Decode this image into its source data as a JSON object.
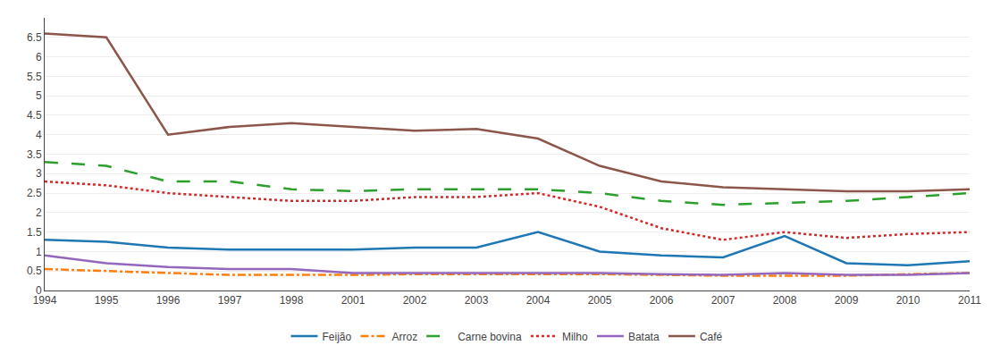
{
  "chart_data": {
    "type": "line",
    "categories": [
      "1994",
      "1995",
      "1996",
      "1997",
      "1998",
      "2001",
      "2002",
      "2003",
      "2004",
      "2005",
      "2006",
      "2007",
      "2008",
      "2009",
      "2010",
      "2011"
    ],
    "series": [
      {
        "name": "Feijão",
        "line_style": "solid",
        "values": [
          1.3,
          1.25,
          1.1,
          1.05,
          1.05,
          1.05,
          1.1,
          1.1,
          1.5,
          1.0,
          0.9,
          0.85,
          1.4,
          0.7,
          0.65,
          0.75
        ]
      },
      {
        "name": "Arroz",
        "line_style": "dashdot",
        "values": [
          0.55,
          0.5,
          0.45,
          0.4,
          0.4,
          0.4,
          0.42,
          0.42,
          0.42,
          0.42,
          0.4,
          0.38,
          0.38,
          0.38,
          0.42,
          0.45
        ]
      },
      {
        "name": "Carne bovina",
        "line_style": "longdash",
        "values": [
          3.3,
          3.2,
          2.8,
          2.8,
          2.6,
          2.55,
          2.6,
          2.6,
          2.6,
          2.5,
          2.3,
          2.2,
          2.25,
          2.3,
          2.4,
          2.5
        ]
      },
      {
        "name": "Milho",
        "line_style": "dot",
        "values": [
          2.8,
          2.7,
          2.5,
          2.4,
          2.3,
          2.3,
          2.4,
          2.4,
          2.5,
          2.15,
          1.6,
          1.3,
          1.5,
          1.35,
          1.45,
          1.5
        ]
      },
      {
        "name": "Batata",
        "line_style": "solid",
        "values": [
          0.9,
          0.7,
          0.6,
          0.55,
          0.55,
          0.45,
          0.45,
          0.45,
          0.45,
          0.45,
          0.42,
          0.4,
          0.45,
          0.4,
          0.4,
          0.45
        ]
      },
      {
        "name": "Café",
        "line_style": "solid",
        "values": [
          6.6,
          6.5,
          4.0,
          4.2,
          4.3,
          4.2,
          4.1,
          4.15,
          3.9,
          3.2,
          2.8,
          2.65,
          2.6,
          2.55,
          2.55,
          2.6
        ]
      }
    ],
    "ylim": [
      0,
      7
    ],
    "yticks": [
      0,
      0.5,
      1,
      1.5,
      2,
      2.5,
      3,
      3.5,
      4,
      4.5,
      5,
      5.5,
      6,
      6.5
    ],
    "grid": "y",
    "legend": "bottom"
  }
}
